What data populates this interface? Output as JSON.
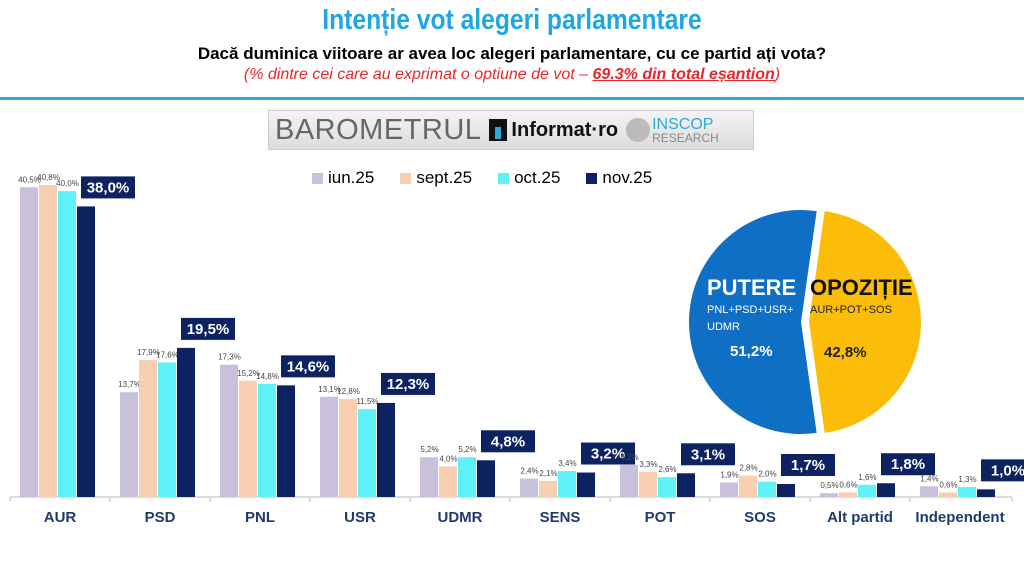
{
  "header": {
    "title": "Intenție vot alegeri parlamentare",
    "subtitle": "Dacă duminica viitoare ar avea loc alegeri parlamentare, cu ce partid ați vota?",
    "note_prefix": "(% dintre cei care au exprimat o optiune de vot – ",
    "note_highlight": "69.3% din total eșantion",
    "note_suffix": ")"
  },
  "logo": {
    "barometrul": "BAROMETRUL",
    "informat": "Informat·ro",
    "inscop": "INSCOP",
    "research": "RESEARCH"
  },
  "chart_data": [
    {
      "type": "bar",
      "categories": [
        "AUR",
        "PSD",
        "PNL",
        "USR",
        "UDMR",
        "SENS",
        "POT",
        "SOS",
        "Alt partid",
        "Independent"
      ],
      "series": [
        {
          "name": "iun.25",
          "color": "#c9c0dc",
          "values": [
            40.5,
            13.7,
            17.3,
            13.1,
            5.2,
            2.4,
            4.2,
            1.9,
            0.5,
            1.4
          ],
          "labels": [
            "40,5%",
            "13,7%",
            "17,3%",
            "13,1%",
            "5,2%",
            "2,4%",
            "4,2%",
            "1,9%",
            "0,5%",
            "1,4%"
          ]
        },
        {
          "name": "sept.25",
          "color": "#f8cfb0",
          "values": [
            40.8,
            17.9,
            15.2,
            12.8,
            4.0,
            2.1,
            3.3,
            2.8,
            0.6,
            0.6
          ],
          "labels": [
            "40,8%",
            "17,9%",
            "15,2%",
            "12,8%",
            "4,0%",
            "2,1%",
            "3,3%",
            "2,8%",
            "0,6%",
            "0,6%"
          ]
        },
        {
          "name": "oct.25",
          "color": "#5ef2f8",
          "values": [
            40.0,
            17.6,
            14.8,
            11.5,
            5.2,
            3.4,
            2.6,
            2.0,
            1.6,
            1.3
          ],
          "labels": [
            "40,0%",
            "17,6%",
            "14,8%",
            "11,5%",
            "5,2%",
            "3,4%",
            "2,6%",
            "2,0%",
            "1,6%",
            "1,3%"
          ]
        },
        {
          "name": "nov.25",
          "color": "#0d2260",
          "values": [
            38.0,
            19.5,
            14.6,
            12.3,
            4.8,
            3.2,
            3.1,
            1.7,
            1.8,
            1.0
          ],
          "labels": [
            "38,0%",
            "19,5%",
            "14,6%",
            "12,3%",
            "4,8%",
            "3,2%",
            "3,1%",
            "1,7%",
            "1,8%",
            "1,0%"
          ]
        }
      ],
      "legend": "top",
      "grid": false,
      "ylim": [
        0,
        42
      ]
    },
    {
      "type": "pie",
      "slices": [
        {
          "label": "PUTERE",
          "sublabel": "PNL+PSD+USR+UDMR",
          "sublabel_line1": "PNL+PSD+USR+",
          "sublabel_line2": "UDMR",
          "value": 51.2,
          "value_label": "51,2%",
          "color": "#0e6fc4"
        },
        {
          "label": "OPOZIȚIE",
          "sublabel": "AUR+POT+SOS",
          "value": 42.8,
          "value_label": "42,8%",
          "color": "#fbbd08"
        }
      ]
    }
  ]
}
